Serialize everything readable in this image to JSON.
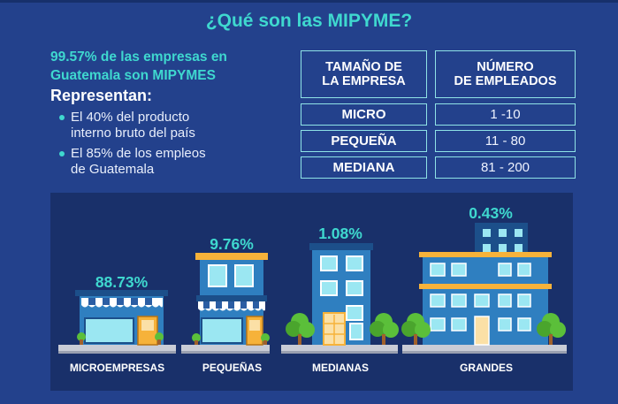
{
  "title": "¿Qué son las MIPYME?",
  "stat_line1": "99.57% de las empresas en",
  "stat_line2": "Guatemala son MIPYMES",
  "represent_heading": "Representan:",
  "bullets": [
    {
      "line1": "El 40% del producto",
      "line2": "interno bruto del país"
    },
    {
      "line1": "El 85% de los empleos",
      "line2": "de Guatemala"
    }
  ],
  "table": {
    "header_size_line1": "TAMAÑO DE",
    "header_size_line2": "LA EMPRESA",
    "header_emp_line1": "NÚMERO",
    "header_emp_line2": "DE EMPLEADOS",
    "rows": [
      {
        "size": "MICRO",
        "employees": "1 -10"
      },
      {
        "size": "PEQUEÑA",
        "employees": "11 - 80"
      },
      {
        "size": "MEDIANA",
        "employees": "81 - 200"
      }
    ]
  },
  "buildings": [
    {
      "label": "MICROEMPRESAS",
      "percent": "88.73%",
      "share": 88.73
    },
    {
      "label": "PEQUEÑAS",
      "percent": "9.76%",
      "share": 9.76
    },
    {
      "label": "MEDIANAS",
      "percent": "1.08%",
      "share": 1.08
    },
    {
      "label": "GRANDES",
      "percent": "0.43%",
      "share": 0.43
    }
  ],
  "colors": {
    "background": "#23418c",
    "panel": "#19306a",
    "accent": "#3fd8cf",
    "table_border": "#8fe3e6"
  }
}
